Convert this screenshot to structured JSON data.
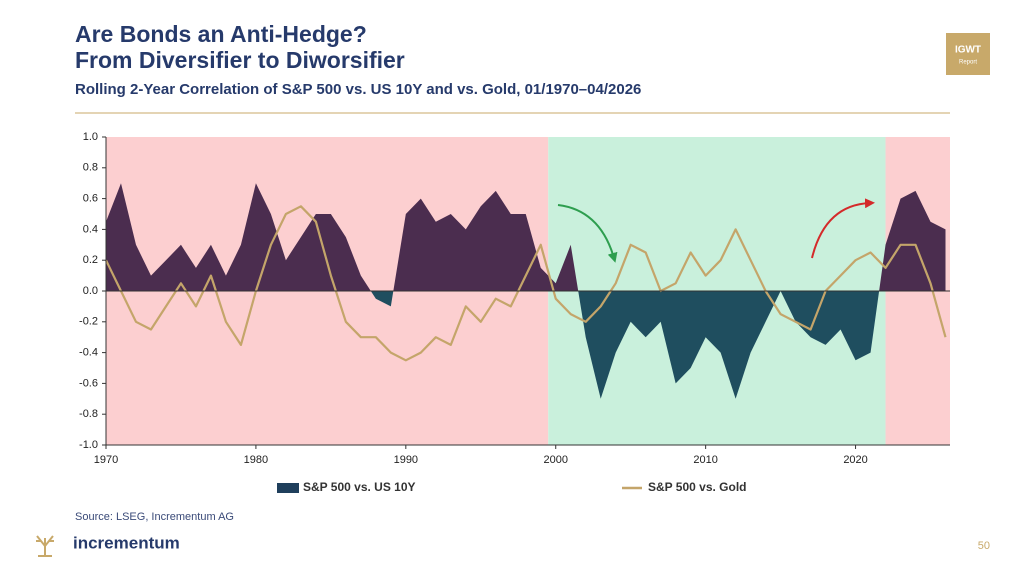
{
  "header": {
    "title_line1": "Are Bonds an Anti-Hedge?",
    "title_line2": "From Diversifier to Diworsifier",
    "subtitle": "Rolling 2-Year Correlation of S&P 500 vs. US 10Y and vs. Gold, 01/1970–04/2026",
    "badge_top": "IGWT",
    "badge_bottom": "Report"
  },
  "chart_data": {
    "type": "line",
    "x": [
      1970,
      1971,
      1972,
      1973,
      1974,
      1975,
      1976,
      1977,
      1978,
      1979,
      1980,
      1981,
      1982,
      1983,
      1984,
      1985,
      1986,
      1987,
      1988,
      1989,
      1990,
      1991,
      1992,
      1993,
      1994,
      1995,
      1996,
      1997,
      1998,
      1999,
      2000,
      2001,
      2002,
      2003,
      2004,
      2005,
      2006,
      2007,
      2008,
      2009,
      2010,
      2011,
      2012,
      2013,
      2014,
      2015,
      2016,
      2017,
      2018,
      2019,
      2020,
      2021,
      2022,
      2023,
      2024,
      2025,
      2026
    ],
    "series": [
      {
        "name": "S&P 500 vs. US 10Y",
        "style": "area",
        "color": "#1f4e5f",
        "positive_color": "#4b2d4f",
        "legend_color": "#1f3f5c",
        "values": [
          0.45,
          0.7,
          0.3,
          0.1,
          0.2,
          0.3,
          0.15,
          0.3,
          0.1,
          0.3,
          0.7,
          0.5,
          0.2,
          0.35,
          0.5,
          0.5,
          0.35,
          0.1,
          -0.05,
          -0.1,
          0.5,
          0.6,
          0.45,
          0.5,
          0.4,
          0.55,
          0.65,
          0.5,
          0.5,
          0.15,
          0.05,
          0.3,
          -0.3,
          -0.7,
          -0.4,
          -0.2,
          -0.3,
          -0.2,
          -0.6,
          -0.5,
          -0.3,
          -0.4,
          -0.7,
          -0.4,
          -0.2,
          0.0,
          -0.2,
          -0.3,
          -0.35,
          -0.25,
          -0.45,
          -0.4,
          0.3,
          0.6,
          0.65,
          0.45,
          0.4
        ]
      },
      {
        "name": "S&P 500 vs. Gold",
        "style": "line",
        "color": "#c4a56a",
        "values": [
          0.2,
          0.0,
          -0.2,
          -0.25,
          -0.1,
          0.05,
          -0.1,
          0.1,
          -0.2,
          -0.35,
          0.0,
          0.3,
          0.5,
          0.55,
          0.45,
          0.1,
          -0.2,
          -0.3,
          -0.3,
          -0.4,
          -0.45,
          -0.4,
          -0.3,
          -0.35,
          -0.1,
          -0.2,
          -0.05,
          -0.1,
          0.1,
          0.3,
          -0.05,
          -0.15,
          -0.2,
          -0.1,
          0.05,
          0.3,
          0.25,
          0.0,
          0.05,
          0.25,
          0.1,
          0.2,
          0.4,
          0.2,
          0.0,
          -0.15,
          -0.2,
          -0.25,
          0.0,
          0.1,
          0.2,
          0.25,
          0.15,
          0.3,
          0.3,
          0.05,
          -0.3
        ]
      }
    ],
    "regions": [
      {
        "from": 1970,
        "to": 1999.5,
        "color": "#fccfd0"
      },
      {
        "from": 1999.5,
        "to": 2022,
        "color": "#c9f0dc"
      },
      {
        "from": 2022,
        "to": 2026.3,
        "color": "#fccfd0"
      }
    ],
    "xlim": [
      1970,
      2026.3
    ],
    "xticks": [
      1970,
      1980,
      1990,
      2000,
      2010,
      2020
    ],
    "ylim": [
      -1,
      1
    ],
    "yticks": [
      {
        "value": -1,
        "label": "-1.0"
      },
      -0.8,
      -0.6,
      -0.4,
      -0.2,
      {
        "value": 0,
        "label": "0.0"
      },
      0.2,
      0.4,
      0.6,
      0.8,
      {
        "value": 1,
        "label": "1.0"
      }
    ]
  },
  "footer": {
    "source": "Source: LSEG, Incrementum AG",
    "logo_text": "incrementum",
    "page": "50"
  }
}
